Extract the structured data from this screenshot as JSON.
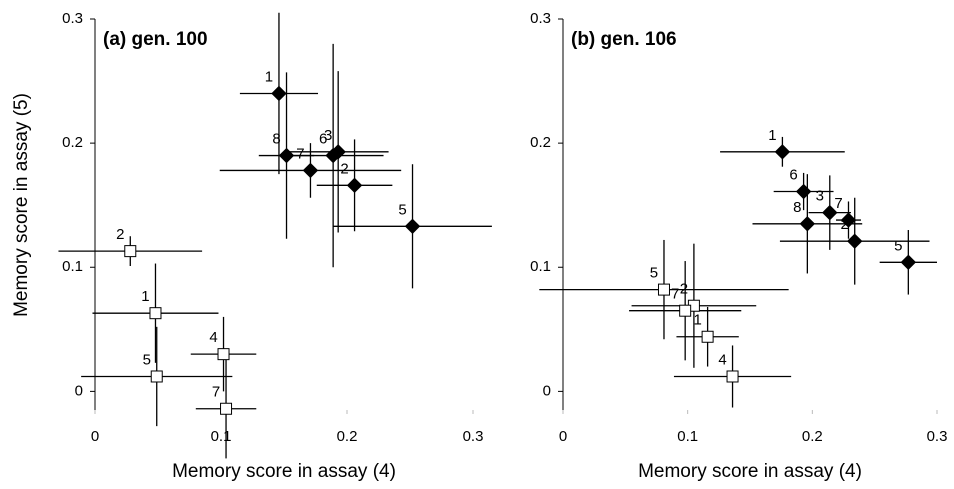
{
  "chart_data": [
    {
      "type": "scatter",
      "title": "(a) gen. 100",
      "xlabel": "Memory score in assay (4)",
      "ylabel": "Memory score in assay (5)",
      "xlim": [
        0,
        0.3
      ],
      "ylim": [
        -0.015,
        0.3
      ],
      "xticks": [
        0,
        0.1,
        0.2,
        0.3
      ],
      "yticks": [
        0,
        0.1,
        0.2,
        0.3
      ],
      "series": [
        {
          "marker": "diamond",
          "color": "#000000",
          "labels": [
            "1",
            "8",
            "7",
            "6",
            "3",
            "2",
            "5"
          ],
          "x": [
            0.146,
            0.152,
            0.171,
            0.189,
            0.193,
            0.206,
            0.252
          ],
          "values": [
            0.24,
            0.19,
            0.178,
            0.19,
            0.193,
            0.166,
            0.133
          ],
          "xerr": [
            0.031,
            0.022,
            0.072,
            0.04,
            0.04,
            0.03,
            0.063
          ],
          "yerr": [
            0.065,
            0.067,
            0.022,
            0.09,
            0.065,
            0.037,
            0.05
          ]
        },
        {
          "marker": "square",
          "color": "#000000",
          "labels": [
            "2",
            "1",
            "4",
            "5",
            "7"
          ],
          "x": [
            0.028,
            0.048,
            0.102,
            0.049,
            0.104
          ],
          "values": [
            0.113,
            0.063,
            0.03,
            0.012,
            -0.014
          ],
          "xerr": [
            0.057,
            0.05,
            0.026,
            0.06,
            0.024
          ],
          "yerr": [
            0.012,
            0.04,
            0.03,
            0.04,
            0.04
          ]
        }
      ]
    },
    {
      "type": "scatter",
      "title": "(b) gen. 106",
      "xlabel": "Memory score in assay (4)",
      "xlim": [
        0,
        0.3
      ],
      "ylim": [
        -0.015,
        0.3
      ],
      "xticks": [
        0,
        0.1,
        0.2,
        0.3
      ],
      "yticks": [
        0,
        0.1,
        0.2,
        0.3
      ],
      "series": [
        {
          "marker": "diamond",
          "color": "#000000",
          "labels": [
            "1",
            "6",
            "3",
            "7",
            "8",
            "2",
            "5"
          ],
          "x": [
            0.176,
            0.193,
            0.214,
            0.229,
            0.196,
            0.234,
            0.277
          ],
          "values": [
            0.193,
            0.161,
            0.144,
            0.138,
            0.135,
            0.121,
            0.104
          ],
          "xerr": [
            0.05,
            0.024,
            0.017,
            0.01,
            0.044,
            0.06,
            0.023
          ],
          "yerr": [
            0.012,
            0.015,
            0.03,
            0.015,
            0.04,
            0.035,
            0.026
          ]
        },
        {
          "marker": "square",
          "color": "#000000",
          "labels": [
            "5",
            "2",
            "7",
            "1",
            "4"
          ],
          "x": [
            0.081,
            0.105,
            0.098,
            0.116,
            0.136
          ],
          "values": [
            0.082,
            0.069,
            0.065,
            0.044,
            0.012
          ],
          "xerr": [
            0.1,
            0.05,
            0.045,
            0.025,
            0.047
          ],
          "yerr": [
            0.04,
            0.05,
            0.04,
            0.024,
            0.025
          ]
        }
      ]
    }
  ]
}
